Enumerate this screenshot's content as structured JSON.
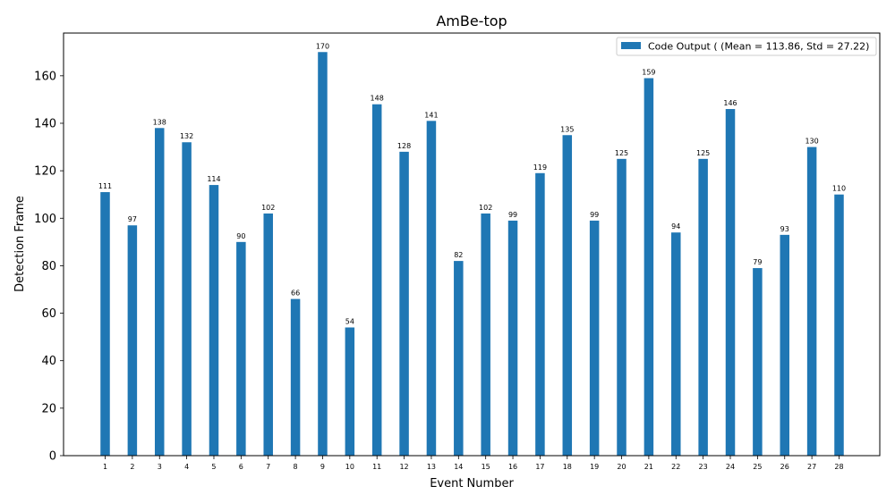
{
  "chart_data": {
    "type": "bar",
    "title": "AmBe-top",
    "xlabel": "Event Number",
    "ylabel": "Detection Frame",
    "ylim": [
      0,
      178
    ],
    "yticks": [
      0,
      20,
      40,
      60,
      80,
      100,
      120,
      140,
      160
    ],
    "categories": [
      "1",
      "2",
      "3",
      "4",
      "5",
      "6",
      "7",
      "8",
      "9",
      "10",
      "11",
      "12",
      "13",
      "14",
      "15",
      "16",
      "17",
      "18",
      "19",
      "20",
      "21",
      "22",
      "23",
      "24",
      "25",
      "26",
      "27",
      "28"
    ],
    "series": [
      {
        "name": "Code Output ( (Mean = 113.86, Std = 27.22)",
        "color": "#1f77b4",
        "values": [
          111,
          97,
          138,
          132,
          114,
          90,
          102,
          66,
          170,
          54,
          148,
          128,
          141,
          82,
          102,
          99,
          119,
          135,
          99,
          125,
          159,
          94,
          125,
          146,
          79,
          93,
          130,
          110
        ]
      }
    ],
    "legend_position": "top-right",
    "grid": false,
    "data_labels": true
  }
}
